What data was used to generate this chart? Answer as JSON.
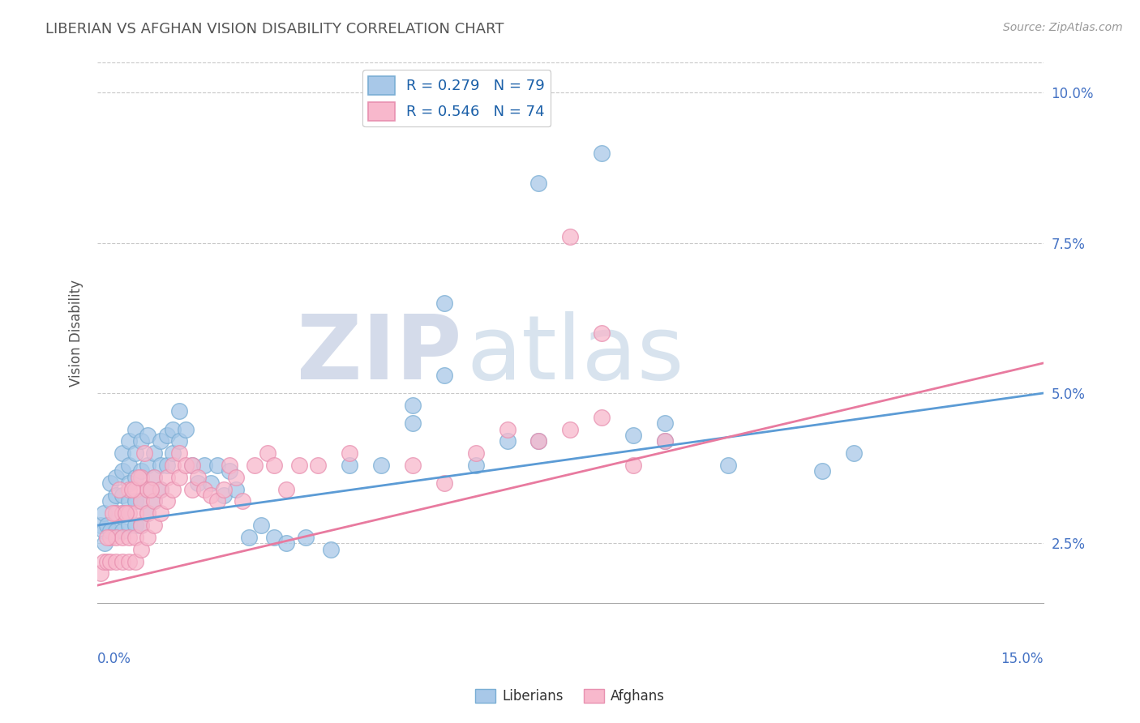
{
  "title": "LIBERIAN VS AFGHAN VISION DISABILITY CORRELATION CHART",
  "source": "Source: ZipAtlas.com",
  "ylabel": "Vision Disability",
  "xlim": [
    0.0,
    0.15
  ],
  "ylim": [
    0.015,
    0.105
  ],
  "xticks": [
    0.0,
    0.025,
    0.05,
    0.075,
    0.1,
    0.125,
    0.15
  ],
  "xticklabels_ends": [
    "0.0%",
    "15.0%"
  ],
  "yticks": [
    0.025,
    0.05,
    0.075,
    0.1
  ],
  "yticklabels": [
    "2.5%",
    "5.0%",
    "7.5%",
    "10.0%"
  ],
  "liberian_color": "#a8c8e8",
  "liberian_edge_color": "#7aaed4",
  "afghan_color": "#f8b8cc",
  "afghan_edge_color": "#e890b0",
  "liberian_line_color": "#5b9bd5",
  "afghan_line_color": "#e87a9f",
  "R_liberian": 0.279,
  "N_liberian": 79,
  "R_afghan": 0.546,
  "N_afghan": 74,
  "legend_label_1": "Liberians",
  "legend_label_2": "Afghans",
  "watermark_zip": "ZIP",
  "watermark_atlas": "atlas",
  "background_color": "#ffffff",
  "grid_color": "#c8c8c8",
  "title_color": "#555555",
  "tick_color": "#4472c4",
  "liberian_x": [
    0.0005,
    0.001,
    0.001,
    0.0012,
    0.0015,
    0.002,
    0.002,
    0.002,
    0.003,
    0.003,
    0.003,
    0.003,
    0.004,
    0.004,
    0.004,
    0.004,
    0.004,
    0.005,
    0.005,
    0.005,
    0.005,
    0.005,
    0.006,
    0.006,
    0.006,
    0.006,
    0.006,
    0.007,
    0.007,
    0.007,
    0.007,
    0.008,
    0.008,
    0.008,
    0.008,
    0.009,
    0.009,
    0.009,
    0.01,
    0.01,
    0.01,
    0.011,
    0.011,
    0.012,
    0.012,
    0.013,
    0.013,
    0.014,
    0.015,
    0.016,
    0.017,
    0.018,
    0.019,
    0.02,
    0.021,
    0.022,
    0.024,
    0.026,
    0.028,
    0.03,
    0.033,
    0.037,
    0.04,
    0.045,
    0.05,
    0.055,
    0.06,
    0.065,
    0.07,
    0.08,
    0.09,
    0.1,
    0.115,
    0.12,
    0.05,
    0.055,
    0.07,
    0.085,
    0.09
  ],
  "liberian_y": [
    0.028,
    0.027,
    0.03,
    0.025,
    0.028,
    0.027,
    0.032,
    0.035,
    0.027,
    0.03,
    0.033,
    0.036,
    0.027,
    0.03,
    0.033,
    0.037,
    0.04,
    0.028,
    0.032,
    0.035,
    0.038,
    0.042,
    0.028,
    0.032,
    0.036,
    0.04,
    0.044,
    0.028,
    0.032,
    0.037,
    0.042,
    0.03,
    0.034,
    0.038,
    0.043,
    0.032,
    0.036,
    0.04,
    0.034,
    0.038,
    0.042,
    0.038,
    0.043,
    0.04,
    0.044,
    0.042,
    0.047,
    0.044,
    0.038,
    0.035,
    0.038,
    0.035,
    0.038,
    0.033,
    0.037,
    0.034,
    0.026,
    0.028,
    0.026,
    0.025,
    0.026,
    0.024,
    0.038,
    0.038,
    0.048,
    0.065,
    0.038,
    0.042,
    0.085,
    0.09,
    0.042,
    0.038,
    0.037,
    0.04,
    0.045,
    0.053,
    0.042,
    0.043,
    0.045
  ],
  "afghan_x": [
    0.0005,
    0.001,
    0.0015,
    0.002,
    0.002,
    0.003,
    0.003,
    0.003,
    0.004,
    0.004,
    0.004,
    0.005,
    0.005,
    0.005,
    0.005,
    0.006,
    0.006,
    0.006,
    0.006,
    0.007,
    0.007,
    0.007,
    0.007,
    0.008,
    0.008,
    0.008,
    0.009,
    0.009,
    0.009,
    0.01,
    0.01,
    0.011,
    0.011,
    0.012,
    0.012,
    0.013,
    0.013,
    0.014,
    0.015,
    0.015,
    0.016,
    0.017,
    0.018,
    0.019,
    0.02,
    0.021,
    0.022,
    0.023,
    0.025,
    0.027,
    0.028,
    0.03,
    0.032,
    0.035,
    0.04,
    0.05,
    0.055,
    0.06,
    0.065,
    0.07,
    0.075,
    0.08,
    0.085,
    0.09,
    0.075,
    0.08,
    0.0015,
    0.0025,
    0.0035,
    0.0045,
    0.0055,
    0.0065,
    0.0075,
    0.0085
  ],
  "afghan_y": [
    0.02,
    0.022,
    0.022,
    0.022,
    0.026,
    0.022,
    0.026,
    0.03,
    0.022,
    0.026,
    0.03,
    0.022,
    0.026,
    0.03,
    0.034,
    0.022,
    0.026,
    0.03,
    0.034,
    0.024,
    0.028,
    0.032,
    0.036,
    0.026,
    0.03,
    0.034,
    0.028,
    0.032,
    0.036,
    0.03,
    0.034,
    0.032,
    0.036,
    0.034,
    0.038,
    0.036,
    0.04,
    0.038,
    0.034,
    0.038,
    0.036,
    0.034,
    0.033,
    0.032,
    0.034,
    0.038,
    0.036,
    0.032,
    0.038,
    0.04,
    0.038,
    0.034,
    0.038,
    0.038,
    0.04,
    0.038,
    0.035,
    0.04,
    0.044,
    0.042,
    0.044,
    0.046,
    0.038,
    0.042,
    0.076,
    0.06,
    0.026,
    0.03,
    0.034,
    0.03,
    0.034,
    0.036,
    0.04,
    0.034
  ]
}
